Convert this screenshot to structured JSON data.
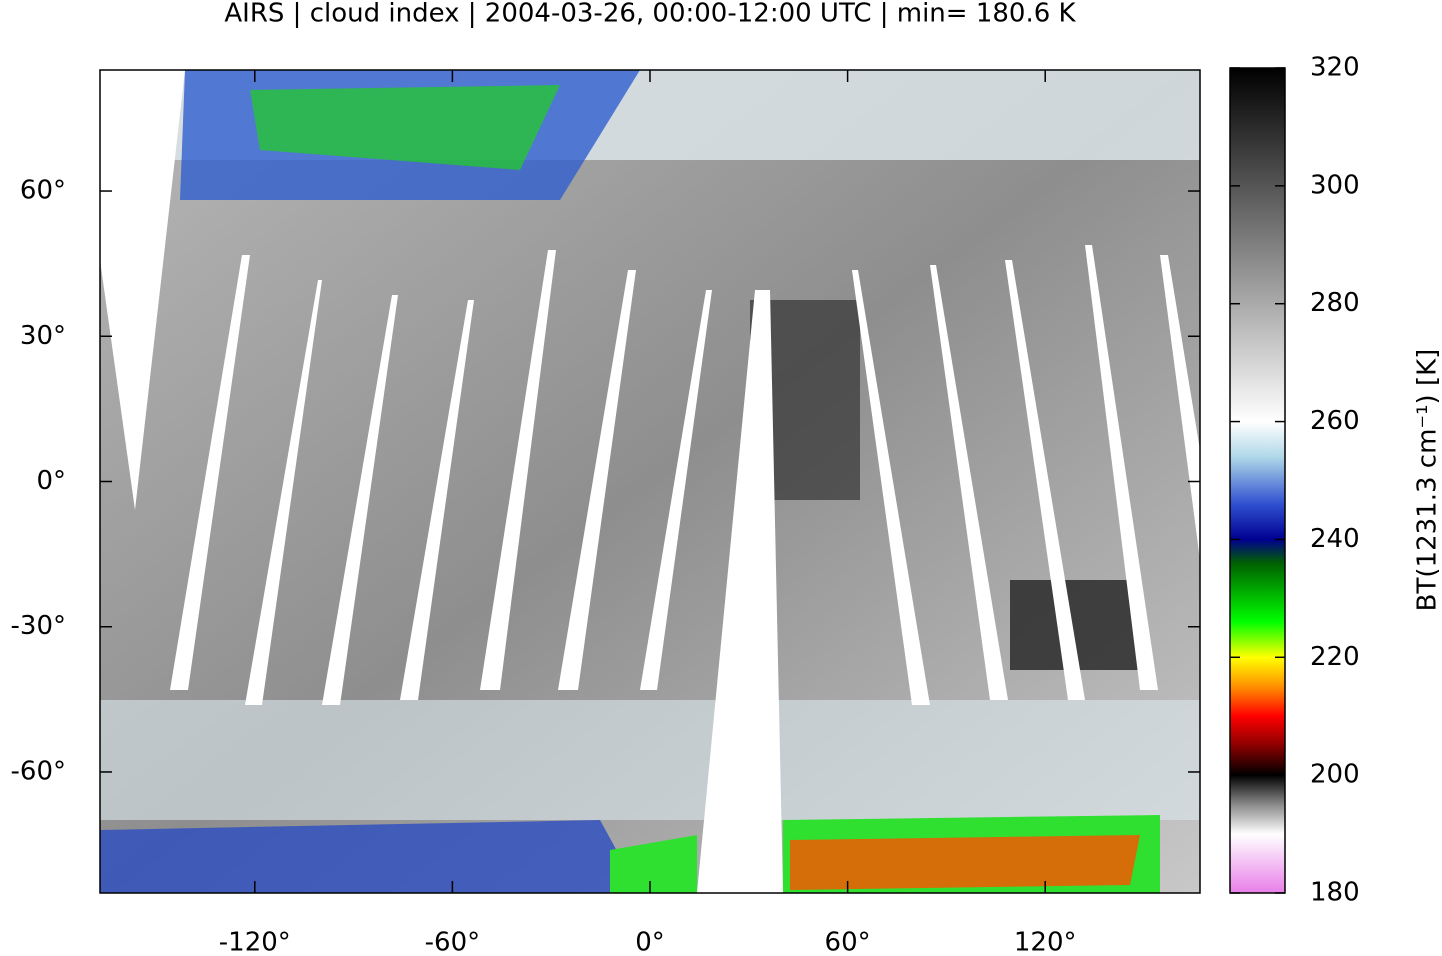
{
  "chart_data": {
    "type": "map",
    "title": "AIRS | cloud index | 2004-03-26, 00:00-12:00 UTC | min= 180.6 K",
    "xlim": [
      -167,
      167
    ],
    "ylim": [
      -85,
      85
    ],
    "xticks": [
      {
        "value": -120,
        "label": "-120°"
      },
      {
        "value": -60,
        "label": "-60°"
      },
      {
        "value": 0,
        "label": "0°"
      },
      {
        "value": 60,
        "label": "60°"
      },
      {
        "value": 120,
        "label": "120°"
      }
    ],
    "yticks": [
      {
        "value": -60,
        "label": "-60°"
      },
      {
        "value": -30,
        "label": "-30°"
      },
      {
        "value": 0,
        "label": "0°"
      },
      {
        "value": 30,
        "label": "30°"
      },
      {
        "value": 60,
        "label": "60°"
      }
    ],
    "colorbar": {
      "label": "BT(1231.3 cm⁻¹) [K]",
      "lim": [
        180,
        320
      ],
      "ticks": [
        180,
        200,
        220,
        240,
        260,
        280,
        300,
        320
      ],
      "colormap": [
        {
          "value": 180,
          "color": "#e87ee8"
        },
        {
          "value": 190,
          "color": "#ffffff"
        },
        {
          "value": 195,
          "color": "#8a8a8a"
        },
        {
          "value": 200,
          "color": "#000000"
        },
        {
          "value": 205,
          "color": "#8b0000"
        },
        {
          "value": 210,
          "color": "#ff0000"
        },
        {
          "value": 215,
          "color": "#ff9000"
        },
        {
          "value": 220,
          "color": "#ffff00"
        },
        {
          "value": 226,
          "color": "#00ff00"
        },
        {
          "value": 236,
          "color": "#006000"
        },
        {
          "value": 240,
          "color": "#000090"
        },
        {
          "value": 246,
          "color": "#3050d0"
        },
        {
          "value": 254,
          "color": "#b0d8e8"
        },
        {
          "value": 260,
          "color": "#ffffff"
        },
        {
          "value": 320,
          "color": "#000000"
        }
      ]
    }
  }
}
